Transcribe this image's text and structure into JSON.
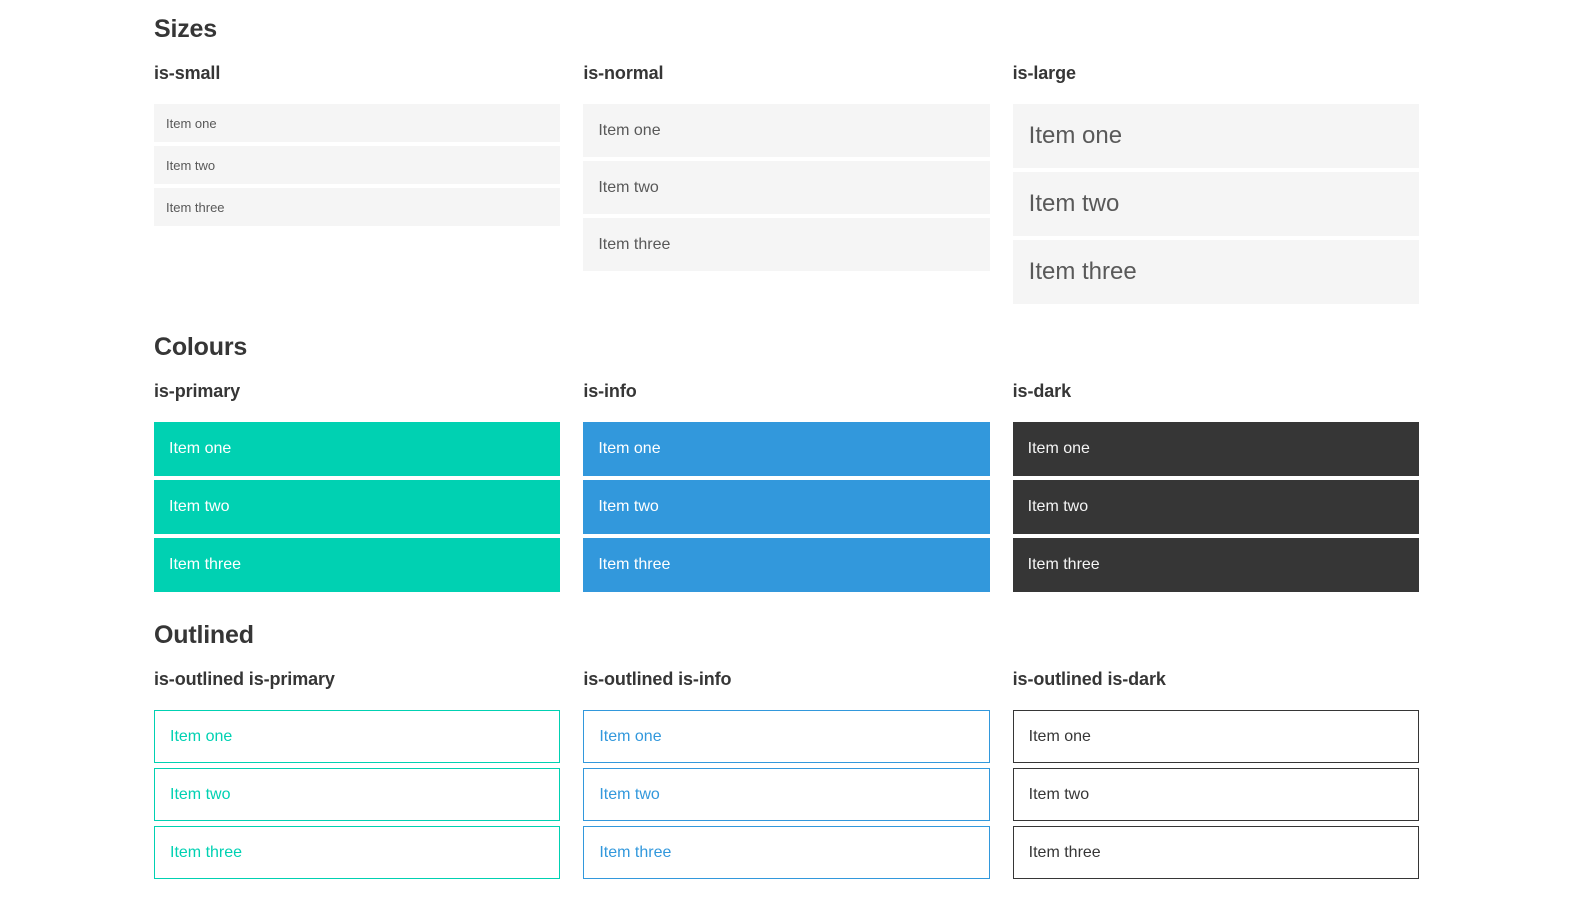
{
  "sections": [
    {
      "title": "Sizes",
      "groups": [
        {
          "label": "is-small",
          "items": [
            "Item one",
            "Item two",
            "Item three"
          ]
        },
        {
          "label": "is-normal",
          "items": [
            "Item one",
            "Item two",
            "Item three"
          ]
        },
        {
          "label": "is-large",
          "items": [
            "Item one",
            "Item two",
            "Item three"
          ]
        }
      ]
    },
    {
      "title": "Colours",
      "groups": [
        {
          "label": "is-primary",
          "items": [
            "Item one",
            "Item two",
            "Item three"
          ]
        },
        {
          "label": "is-info",
          "items": [
            "Item one",
            "Item two",
            "Item three"
          ]
        },
        {
          "label": "is-dark",
          "items": [
            "Item one",
            "Item two",
            "Item three"
          ]
        }
      ]
    },
    {
      "title": "Outlined",
      "groups": [
        {
          "label": "is-outlined is-primary",
          "items": [
            "Item one",
            "Item two",
            "Item three"
          ]
        },
        {
          "label": "is-outlined is-info",
          "items": [
            "Item one",
            "Item two",
            "Item three"
          ]
        },
        {
          "label": "is-outlined is-dark",
          "items": [
            "Item one",
            "Item two",
            "Item three"
          ]
        }
      ]
    }
  ],
  "colors": {
    "primary": "#00d1b2",
    "info": "#3298dc",
    "dark": "#363636",
    "item_bg": "#f5f5f5",
    "item_text": "#595959",
    "heading": "#363636",
    "white": "#ffffff"
  }
}
